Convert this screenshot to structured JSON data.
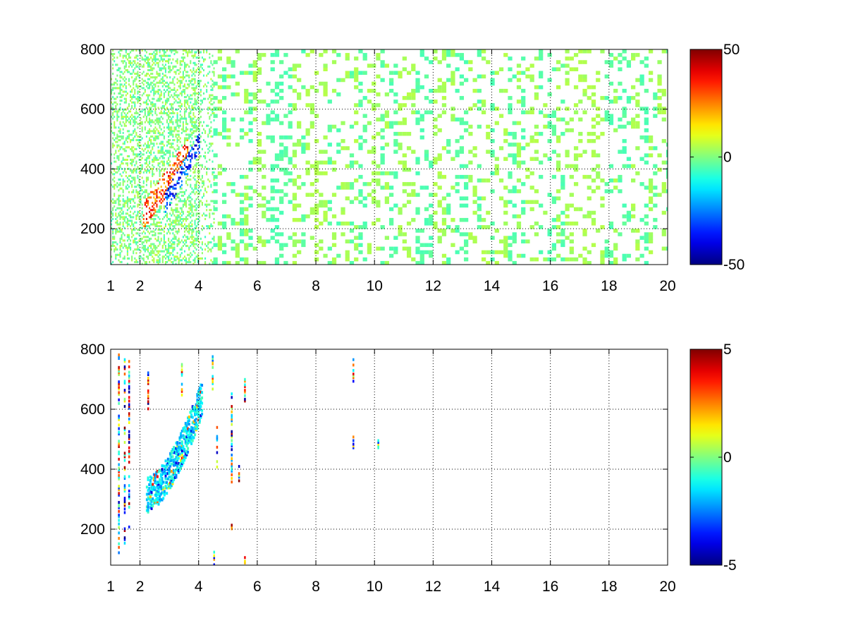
{
  "chart_data": [
    {
      "type": "heatmap",
      "title": "",
      "xlabel": "",
      "ylabel": "",
      "x_ticks": [
        "1",
        "2",
        "4",
        "6",
        "8",
        "10",
        "12",
        "14",
        "16",
        "18",
        "20"
      ],
      "x_tick_values": [
        1,
        2,
        4,
        6,
        8,
        10,
        12,
        14,
        16,
        18,
        20
      ],
      "y_ticks": [
        "200",
        "400",
        "600",
        "800"
      ],
      "y_tick_values": [
        200,
        400,
        600,
        800
      ],
      "xlim": [
        1,
        20
      ],
      "ylim": [
        80,
        800
      ],
      "grid": true,
      "colormap": "jet",
      "colorbar": {
        "ticks": [
          "-50",
          "0",
          "50"
        ],
        "tick_values": [
          -50,
          0,
          50
        ],
        "clim": [
          -50,
          50
        ]
      },
      "features": [
        {
          "name": "positive ridge",
          "x_range": [
            2.1,
            3.6
          ],
          "y_range": [
            260,
            460
          ],
          "peak": 40
        },
        {
          "name": "negative ridge",
          "x_range": [
            2.7,
            4.0
          ],
          "y_range": [
            300,
            520
          ],
          "peak": -40
        },
        {
          "name": "sparse noise",
          "x_range": [
            4,
            20
          ],
          "y_range": [
            80,
            800
          ],
          "level": 5
        }
      ]
    },
    {
      "type": "heatmap",
      "title": "",
      "xlabel": "",
      "ylabel": "",
      "x_ticks": [
        "1",
        "2",
        "4",
        "6",
        "8",
        "10",
        "12",
        "14",
        "16",
        "18",
        "20"
      ],
      "x_tick_values": [
        1,
        2,
        4,
        6,
        8,
        10,
        12,
        14,
        16,
        18,
        20
      ],
      "y_ticks": [
        "200",
        "400",
        "600",
        "800"
      ],
      "y_tick_values": [
        200,
        400,
        600,
        800
      ],
      "xlim": [
        1,
        20
      ],
      "ylim": [
        80,
        800
      ],
      "grid": true,
      "colormap": "jet",
      "colorbar": {
        "ticks": [
          "-5",
          "0",
          "5"
        ],
        "tick_values": [
          -5,
          0,
          5
        ],
        "clim": [
          -5,
          5
        ]
      },
      "features": [
        {
          "name": "ridge",
          "x_range": [
            2.2,
            4.0
          ],
          "y_range": [
            280,
            620
          ],
          "level": -1.5
        },
        {
          "name": "isolated streaks",
          "x_range": [
            1.2,
            10.2
          ],
          "y_range": [
            80,
            780
          ],
          "level": 5
        }
      ]
    }
  ]
}
